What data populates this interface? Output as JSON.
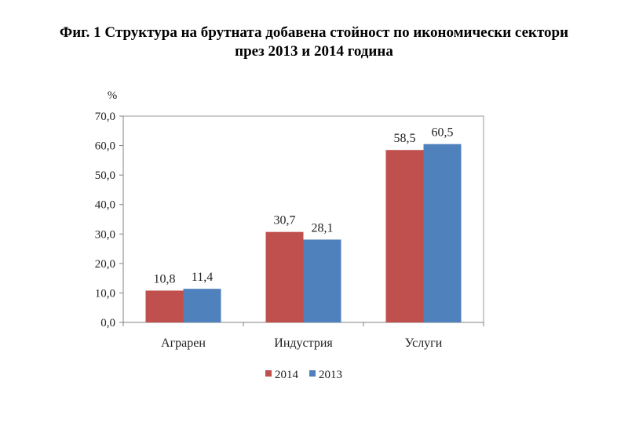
{
  "chart_data": {
    "type": "bar",
    "title_line1": "Фиг. 1 Структура на брутната добавена стойност по икономически сектори",
    "title_line2": "през 2013 и 2014 година",
    "ylabel": "%",
    "xlabel": "",
    "ylim": [
      0,
      70
    ],
    "y_ticks": [
      "0,0",
      "10,0",
      "20,0",
      "30,0",
      "40,0",
      "50,0",
      "60,0",
      "70,0"
    ],
    "categories": [
      "Аграрен",
      "Индустрия",
      "Услуги"
    ],
    "series": [
      {
        "name": "2014",
        "color": "#c0504d",
        "values": [
          10.8,
          30.7,
          58.5
        ],
        "labels": [
          "10,8",
          "30,7",
          "58,5"
        ]
      },
      {
        "name": "2013",
        "color": "#4f81bd",
        "values": [
          11.4,
          28.1,
          60.5
        ],
        "labels": [
          "11,4",
          "28,1",
          "60,5"
        ]
      }
    ],
    "grid": false,
    "legend_position": "bottom"
  }
}
